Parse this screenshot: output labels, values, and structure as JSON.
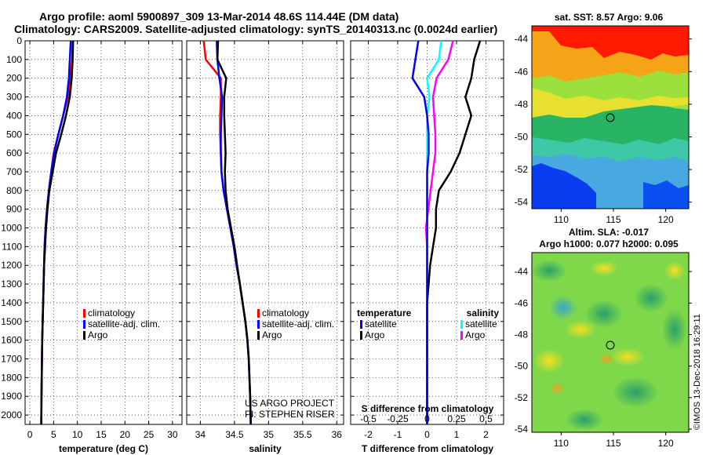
{
  "title_line1": "Argo profile: aoml 5900897_309 13-Mar-2014 48.6S 114.44E (DM data)",
  "title_line2": "Climatology: CARS2009. Satellite-adjusted climatology: synTS_20140313.nc (0.0024d earlier)",
  "depth_ticks": [
    "0",
    "100",
    "200",
    "300",
    "400",
    "500",
    "600",
    "700",
    "800",
    "900",
    "1000",
    "1100",
    "1200",
    "1300",
    "1400",
    "1500",
    "1600",
    "1700",
    "1800",
    "1900",
    "2000"
  ],
  "panel_temp": {
    "xlabel": "temperature (deg C)",
    "xticks": [
      "0",
      "5",
      "10",
      "15",
      "20",
      "25",
      "30"
    ],
    "legend": [
      "climatology",
      "satellite-adj. clim.",
      "Argo"
    ]
  },
  "panel_sal": {
    "xlabel": "salinity",
    "xticks": [
      "34",
      "34.5",
      "35",
      "35.5",
      "36"
    ],
    "legend": [
      "climatology",
      "satellite-adj. clim.",
      "Argo"
    ],
    "credit1": "US ARGO PROJECT",
    "credit2": "PI: STEPHEN RISER"
  },
  "panel_diff": {
    "xlabel": "T difference from climatology",
    "xticks": [
      "-2",
      "-1",
      "0",
      "1",
      "2"
    ],
    "stop_label": "S difference from climatology",
    "s_ticks": [
      "-0.5",
      "-0.25",
      "0",
      "0.25",
      "0.5"
    ],
    "leg_t_head": "temperature",
    "leg_s_head": "salinity",
    "leg_t": [
      "satellite",
      "Argo"
    ],
    "leg_s": [
      "satellite",
      "Argo"
    ]
  },
  "map_sst": {
    "title": "sat. SST: 8.57 Argo: 9.06",
    "yticks": [
      "-44",
      "-46",
      "-48",
      "-50",
      "-52",
      "-54"
    ],
    "xticks": [
      "110",
      "115",
      "120"
    ]
  },
  "map_sla": {
    "title1": "Altim. SLA: -0.017",
    "title2": "Argo h1000: 0.077 h2000: 0.095",
    "yticks": [
      "-44",
      "-46",
      "-48",
      "-50",
      "-52",
      "-54"
    ],
    "xticks": [
      "110",
      "115",
      "120"
    ]
  },
  "watermark": "©IMOS 13-Dec-2018 16:29:11",
  "colors": {
    "climatology": "#ff0000",
    "satellite": "#0000ff",
    "argo": "#000000",
    "sat_sal": "#00ffff",
    "argo_sal": "#ff00ff"
  },
  "chart_data": [
    {
      "type": "line",
      "xlabel": "temperature (deg C)",
      "ylabel": "",
      "xlim": [
        -1,
        32
      ],
      "ylim": [
        2050,
        0
      ],
      "series": [
        {
          "name": "climatology",
          "x": [
            9.0,
            8.9,
            8.5,
            8.0,
            7.0,
            6.0,
            5.0,
            4.5,
            4.0,
            3.6,
            3.3,
            3.1,
            3.0,
            2.9,
            2.8,
            2.7,
            2.6,
            2.55,
            2.5,
            2.45,
            2.4
          ],
          "y": [
            0,
            100,
            200,
            300,
            400,
            500,
            600,
            700,
            800,
            900,
            1000,
            1100,
            1200,
            1300,
            1400,
            1500,
            1600,
            1700,
            1800,
            1900,
            2050
          ]
        },
        {
          "name": "satellite-adj. clim.",
          "x": [
            8.6,
            8.4,
            8.2,
            7.8,
            7.0,
            6.0,
            5.1,
            4.5,
            4.0,
            3.6,
            3.3,
            3.1,
            3.0,
            2.9,
            2.8,
            2.7,
            2.6,
            2.55,
            2.5,
            2.45,
            2.4
          ],
          "y": [
            0,
            100,
            200,
            300,
            400,
            500,
            600,
            700,
            800,
            900,
            1000,
            1100,
            1200,
            1300,
            1400,
            1500,
            1600,
            1700,
            1800,
            1900,
            2050
          ]
        },
        {
          "name": "Argo",
          "x": [
            9.1,
            9.0,
            8.8,
            8.4,
            7.6,
            6.6,
            5.5,
            4.8,
            4.1,
            3.7,
            3.4,
            3.2,
            3.0,
            2.9,
            2.8,
            2.7,
            2.6,
            2.55,
            2.5,
            2.45,
            2.4
          ],
          "y": [
            0,
            100,
            200,
            300,
            400,
            500,
            600,
            700,
            800,
            900,
            1000,
            1100,
            1200,
            1300,
            1400,
            1500,
            1600,
            1700,
            1800,
            1900,
            2050
          ]
        }
      ]
    },
    {
      "type": "line",
      "xlabel": "salinity",
      "ylabel": "",
      "xlim": [
        33.8,
        36.1
      ],
      "ylim": [
        2050,
        0
      ],
      "series": [
        {
          "name": "climatology",
          "x": [
            34.05,
            34.08,
            34.3,
            34.3,
            34.29,
            34.29,
            34.3,
            34.31,
            34.34,
            34.39,
            34.44,
            34.49,
            34.53,
            34.58,
            34.62,
            34.66,
            34.69,
            34.71,
            34.72,
            34.73,
            34.74
          ],
          "y": [
            0,
            100,
            200,
            300,
            400,
            500,
            600,
            700,
            800,
            900,
            1000,
            1100,
            1200,
            1300,
            1400,
            1500,
            1600,
            1700,
            1800,
            1900,
            2050
          ]
        },
        {
          "name": "satellite-adj. clim.",
          "x": [
            34.24,
            34.25,
            34.28,
            34.32,
            34.31,
            34.3,
            34.3,
            34.31,
            34.34,
            34.39,
            34.44,
            34.49,
            34.53,
            34.58,
            34.62,
            34.66,
            34.69,
            34.71,
            34.72,
            34.73,
            34.74
          ],
          "y": [
            0,
            100,
            200,
            300,
            400,
            500,
            600,
            700,
            800,
            900,
            1000,
            1100,
            1200,
            1300,
            1400,
            1500,
            1600,
            1700,
            1800,
            1900,
            2050
          ]
        },
        {
          "name": "Argo",
          "x": [
            34.26,
            34.25,
            34.38,
            34.35,
            34.35,
            34.36,
            34.37,
            34.36,
            34.37,
            34.4,
            34.45,
            34.5,
            34.54,
            34.58,
            34.62,
            34.66,
            34.69,
            34.71,
            34.72,
            34.73,
            34.74
          ],
          "y": [
            0,
            100,
            200,
            300,
            400,
            500,
            600,
            700,
            800,
            900,
            1000,
            1100,
            1200,
            1300,
            1400,
            1500,
            1600,
            1700,
            1800,
            1900,
            2050
          ]
        }
      ]
    },
    {
      "type": "line",
      "xlabel": "T difference from climatology",
      "ylabel": "",
      "xlim": [
        -2.6,
        2.6
      ],
      "ylim": [
        2050,
        0
      ],
      "series": [
        {
          "name": "satellite",
          "x": [
            -0.3,
            -0.4,
            -0.5,
            -0.1,
            0.0,
            0.05,
            0.05,
            0.0,
            0.0,
            0.0,
            0.0,
            0.0,
            0.0,
            0.0,
            0.0,
            0.0,
            0.0,
            0.0,
            0.0,
            0.0,
            0.0
          ],
          "y": [
            0,
            100,
            200,
            300,
            400,
            500,
            600,
            700,
            800,
            900,
            1000,
            1100,
            1200,
            1300,
            1400,
            1500,
            1600,
            1700,
            1800,
            1900,
            2050
          ]
        },
        {
          "name": "Argo",
          "x": [
            1.8,
            1.6,
            1.5,
            1.3,
            1.5,
            1.3,
            1.1,
            0.8,
            0.4,
            0.3,
            0.3,
            0.2,
            0.1,
            0.05,
            0.0,
            0.0,
            0.0,
            0.0,
            0.0,
            0.0,
            0.0
          ],
          "y": [
            0,
            100,
            200,
            300,
            400,
            500,
            600,
            700,
            800,
            900,
            1000,
            1100,
            1200,
            1300,
            1400,
            1500,
            1600,
            1700,
            1800,
            1900,
            2050
          ]
        }
      ]
    },
    {
      "type": "line",
      "xlabel": "S difference from climatology",
      "ylabel": "",
      "xlim": [
        -0.65,
        0.65
      ],
      "ylim": [
        2050,
        0
      ],
      "series": [
        {
          "name": "satellite",
          "x": [
            0.12,
            0.1,
            0.0,
            0.02,
            0.0,
            0.0,
            0.0,
            0.0,
            0.0,
            0.0,
            0.0,
            0.0,
            0.0,
            0.0,
            0.0,
            0.0,
            0.0,
            0.0,
            0.0,
            0.0,
            0.0
          ],
          "y": [
            0,
            100,
            200,
            300,
            400,
            500,
            600,
            700,
            800,
            900,
            1000,
            1100,
            1200,
            1300,
            1400,
            1500,
            1600,
            1700,
            1800,
            1900,
            2050
          ]
        },
        {
          "name": "Argo",
          "x": [
            0.22,
            0.18,
            0.08,
            0.05,
            0.06,
            0.07,
            0.07,
            0.05,
            0.03,
            0.01,
            -0.01,
            0.0,
            0.0,
            0.0,
            0.0,
            0.0,
            0.0,
            0.0,
            0.0,
            0.0,
            0.0
          ],
          "y": [
            0,
            100,
            200,
            300,
            400,
            500,
            600,
            700,
            800,
            900,
            1000,
            1100,
            1200,
            1300,
            1400,
            1500,
            1600,
            1700,
            1800,
            1900,
            2050
          ]
        }
      ]
    }
  ]
}
